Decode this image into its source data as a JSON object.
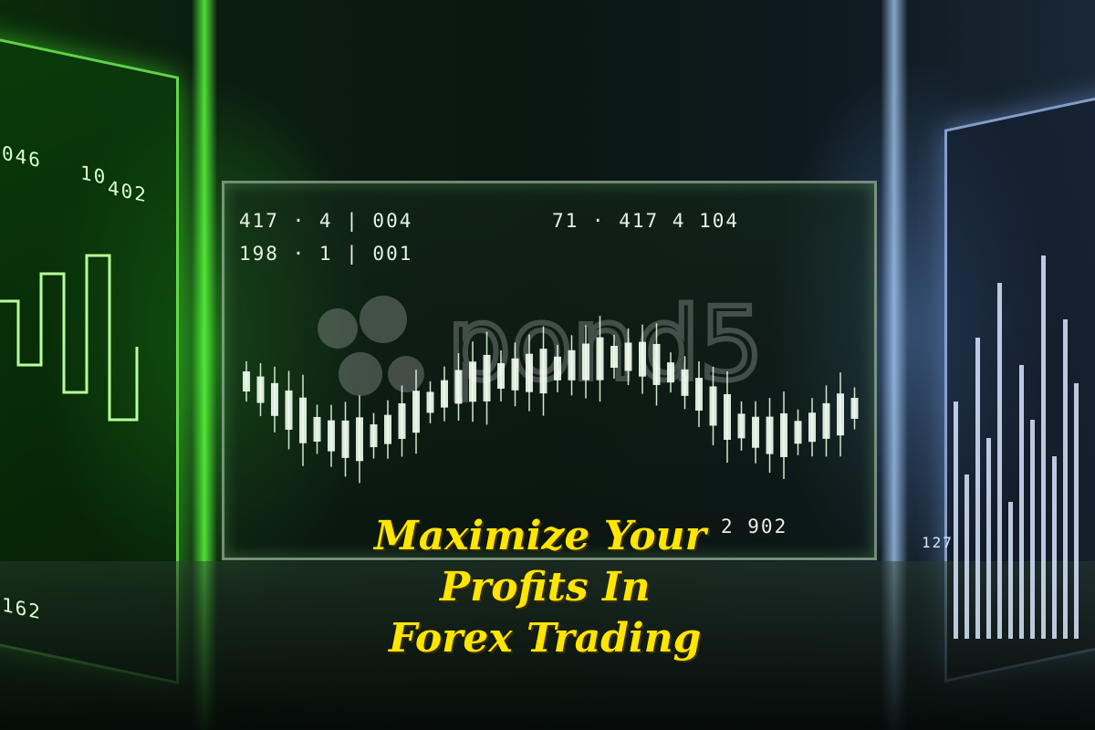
{
  "readouts": {
    "row1_left": "417 · 4 | 004",
    "row2_left": "198 · 1 | 001",
    "row1_right": "71 · 417  4 104",
    "bottom_right": "2 902"
  },
  "side_labels": {
    "left_a": "046",
    "left_b": "10",
    "left_c": "402",
    "left_d": "162",
    "right_a": "127"
  },
  "headline": {
    "line1": "Maximize Your",
    "line2": "Profits In",
    "line3": "Forex Trading"
  },
  "colors": {
    "headline": "#ffe500",
    "left_glow": "#5aff3c",
    "right_glow": "#aac8ff"
  }
}
